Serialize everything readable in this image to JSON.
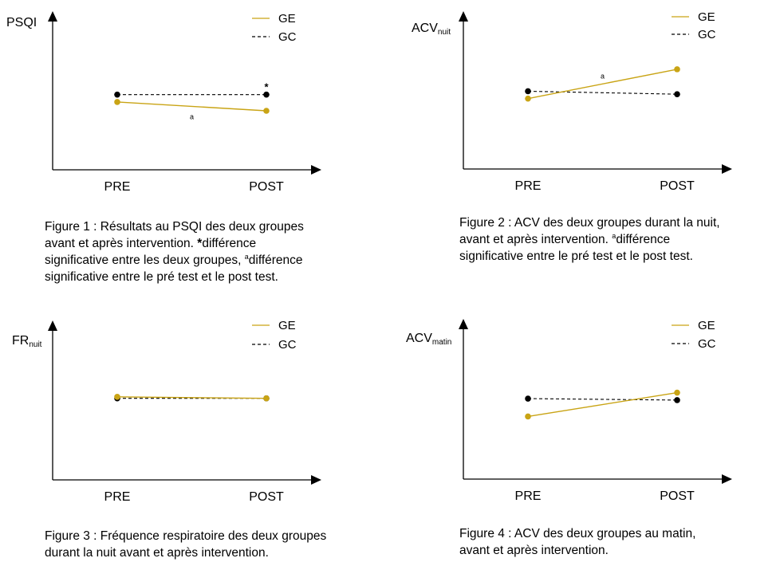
{
  "colors": {
    "ge": "#c9a415",
    "gc": "#000000",
    "axis": "#000000"
  },
  "charts": [
    {
      "caption_parts": [
        "Figure 1 : Résultats au PSQI des deux groupes",
        "avant et après intervention. ",
        "*",
        "différence",
        "significative entre les deux groupes, ",
        "a",
        "différence",
        "significative entre le pré test et le post test."
      ]
    },
    {
      "caption_parts": [
        "Figure 2 : ACV des deux groupes durant la nuit,",
        "avant et après intervention. ",
        "a",
        "différence",
        "significative entre le pré test et le post test."
      ]
    },
    {
      "caption_parts": [
        "Figure 3 : Fréquence respiratoire des deux groupes",
        "durant la nuit avant et après intervention."
      ]
    },
    {
      "caption_parts": [
        "Figure 4 : ACV des deux groupes au matin,",
        "avant et après intervention."
      ]
    }
  ],
  "chart_data": [
    {
      "type": "line",
      "ylabel": "PSQI",
      "ylabel_sub": "",
      "categories": [
        "PRE",
        "POST"
      ],
      "ylim": [
        0,
        10
      ],
      "series": [
        {
          "name": "GE",
          "values": [
            4.6,
            4.0
          ]
        },
        {
          "name": "GC",
          "values": [
            5.1,
            5.1
          ]
        }
      ],
      "annotations": [
        {
          "text": "a",
          "series": "GE",
          "position": "between"
        },
        {
          "text": "*",
          "series": "GC",
          "position": "POST"
        }
      ]
    },
    {
      "type": "line",
      "ylabel": "ACV",
      "ylabel_sub": "nuit",
      "categories": [
        "PRE",
        "POST"
      ],
      "ylim": [
        0,
        10
      ],
      "series": [
        {
          "name": "GE",
          "values": [
            4.8,
            6.8
          ]
        },
        {
          "name": "GC",
          "values": [
            5.3,
            5.1
          ]
        }
      ],
      "annotations": [
        {
          "text": "a",
          "series": "GE",
          "position": "between"
        }
      ]
    },
    {
      "type": "line",
      "ylabel": "FR",
      "ylabel_sub": "nuit",
      "categories": [
        "PRE",
        "POST"
      ],
      "ylim": [
        0,
        10
      ],
      "series": [
        {
          "name": "GE",
          "values": [
            5.6,
            5.5
          ]
        },
        {
          "name": "GC",
          "values": [
            5.5,
            5.5
          ]
        }
      ],
      "annotations": []
    },
    {
      "type": "line",
      "ylabel": "ACV",
      "ylabel_sub": "matin",
      "categories": [
        "PRE",
        "POST"
      ],
      "ylim": [
        0,
        10
      ],
      "series": [
        {
          "name": "GE",
          "values": [
            4.2,
            5.8
          ]
        },
        {
          "name": "GC",
          "values": [
            5.4,
            5.3
          ]
        }
      ],
      "annotations": []
    }
  ]
}
